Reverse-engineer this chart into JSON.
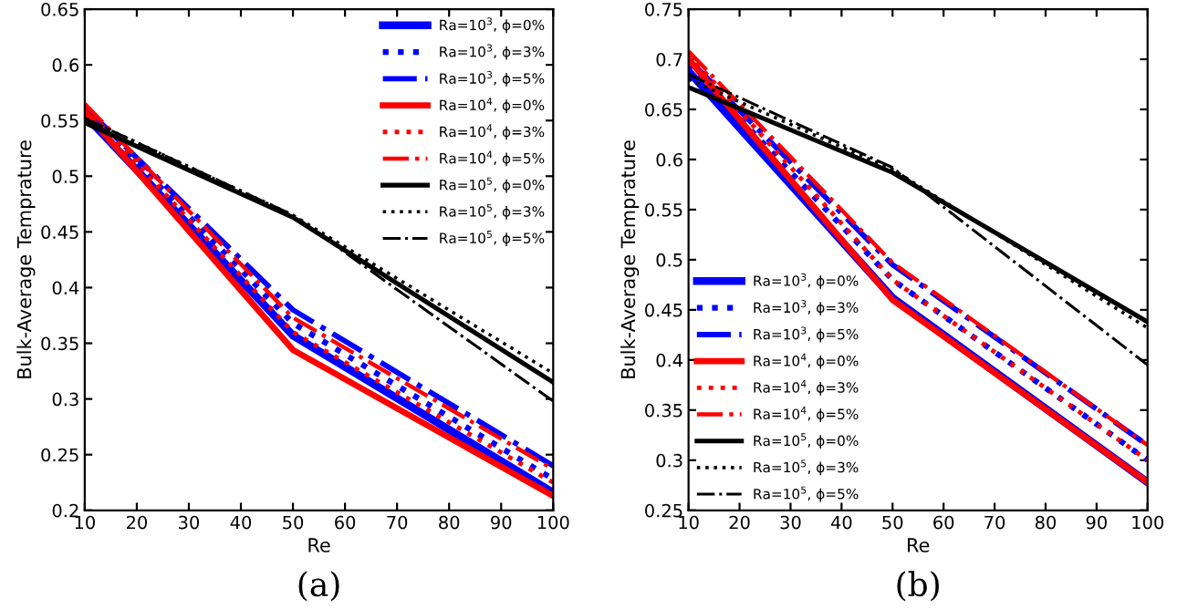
{
  "chart_data": [
    {
      "type": "line",
      "xlabel": "Re",
      "ylabel": "Bulk-Average Temprature",
      "annotations": [
        "(a)"
      ],
      "x": [
        10,
        50,
        100
      ],
      "xlim": [
        10,
        100
      ],
      "xticks": [
        10,
        20,
        30,
        40,
        50,
        60,
        70,
        80,
        90,
        100
      ],
      "ylim": [
        0.2,
        0.65
      ],
      "yticks": [
        0.2,
        0.25,
        0.3,
        0.35,
        0.4,
        0.45,
        0.5,
        0.55,
        0.6,
        0.65
      ],
      "grid": false,
      "legend": "top right",
      "marker": "none",
      "series": [
        {
          "name": "Ra=10$^{3}$, ϕ=0%",
          "color": "#0000ff",
          "line_style": "solid",
          "values": [
            0.555,
            0.357,
            0.216
          ]
        },
        {
          "name": "Ra=10$^{3}$, ϕ=3%",
          "color": "#0000ff",
          "line_style": "dotted",
          "values": [
            0.56,
            0.368,
            0.228
          ]
        },
        {
          "name": "Ra=10$^{3}$, ϕ=5%",
          "color": "#0000ff",
          "line_style": "dashdot",
          "values": [
            0.562,
            0.38,
            0.24
          ]
        },
        {
          "name": "Ra=10$^{4}$, ϕ=0%",
          "color": "#ff0000",
          "line_style": "solid",
          "values": [
            0.558,
            0.344,
            0.213
          ]
        },
        {
          "name": "Ra=10$^{4}$, ϕ=3%",
          "color": "#ff0000",
          "line_style": "dotted",
          "values": [
            0.562,
            0.36,
            0.225
          ]
        },
        {
          "name": "Ra=10$^{4}$, ϕ=5%",
          "color": "#ff0000",
          "line_style": "dashdot",
          "values": [
            0.565,
            0.373,
            0.237
          ]
        },
        {
          "name": "Ra=10$^{5}$, ϕ=0%",
          "color": "#000000",
          "line_style": "solid",
          "values": [
            0.548,
            0.463,
            0.315
          ]
        },
        {
          "name": "Ra=10$^{5}$, ϕ=3%",
          "color": "#000000",
          "line_style": "dotted",
          "values": [
            0.552,
            0.465,
            0.323
          ]
        },
        {
          "name": "Ra=10$^{5}$, ϕ=5%",
          "color": "#000000",
          "line_style": "dashdot",
          "values": [
            0.552,
            0.465,
            0.298
          ]
        }
      ]
    },
    {
      "type": "line",
      "xlabel": "Re",
      "ylabel": "Bulk-Average Temprature",
      "annotations": [
        "(b)"
      ],
      "x": [
        10,
        50,
        100
      ],
      "xlim": [
        10,
        100
      ],
      "xticks": [
        10,
        20,
        30,
        40,
        50,
        60,
        70,
        80,
        90,
        100
      ],
      "ylim": [
        0.25,
        0.75
      ],
      "yticks": [
        0.25,
        0.3,
        0.35,
        0.4,
        0.45,
        0.5,
        0.55,
        0.6,
        0.65,
        0.7,
        0.75
      ],
      "grid": false,
      "legend": "bottom left",
      "marker": "none",
      "series": [
        {
          "name": "Ra=10$^{3}$, ϕ=0%",
          "color": "#0000ff",
          "line_style": "solid",
          "values": [
            0.688,
            0.462,
            0.278
          ]
        },
        {
          "name": "Ra=10$^{3}$, ϕ=3%",
          "color": "#0000ff",
          "line_style": "dotted",
          "values": [
            0.695,
            0.48,
            0.3
          ]
        },
        {
          "name": "Ra=10$^{3}$, ϕ=5%",
          "color": "#0000ff",
          "line_style": "dashdot",
          "values": [
            0.7,
            0.495,
            0.315
          ]
        },
        {
          "name": "Ra=10$^{4}$, ϕ=0%",
          "color": "#ff0000",
          "line_style": "solid",
          "values": [
            0.7,
            0.46,
            0.278
          ]
        },
        {
          "name": "Ra=10$^{4}$, ϕ=3%",
          "color": "#ff0000",
          "line_style": "dotted",
          "values": [
            0.705,
            0.48,
            0.3
          ]
        },
        {
          "name": "Ra=10$^{4}$, ϕ=5%",
          "color": "#ff0000",
          "line_style": "dashdot",
          "values": [
            0.708,
            0.497,
            0.315
          ]
        },
        {
          "name": "Ra=10$^{5}$, ϕ=0%",
          "color": "#000000",
          "line_style": "solid",
          "values": [
            0.672,
            0.587,
            0.438
          ]
        },
        {
          "name": "Ra=10$^{5}$, ϕ=3%",
          "color": "#000000",
          "line_style": "dotted",
          "values": [
            0.68,
            0.59,
            0.432
          ]
        },
        {
          "name": "Ra=10$^{5}$, ϕ=5%",
          "color": "#000000",
          "line_style": "dashdot",
          "values": [
            0.685,
            0.592,
            0.395
          ]
        }
      ]
    }
  ]
}
